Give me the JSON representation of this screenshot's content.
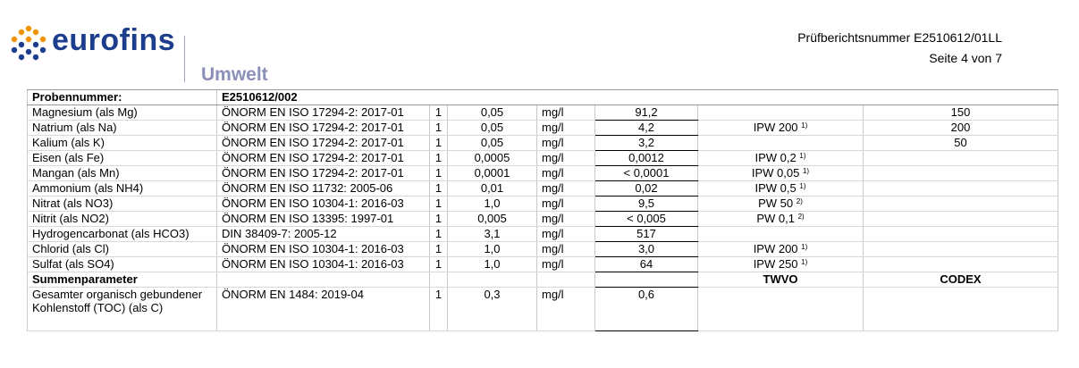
{
  "header": {
    "logo": "eurofins",
    "division": "Umwelt",
    "report_number": "Prüfberichtsnummer E2510612/01LL",
    "page": "Seite 4 von 7"
  },
  "table": {
    "sample_label": "Probennummer:",
    "sample_id": "E2510612/002",
    "rows": [
      {
        "parameter": "Magnesium (als Mg)",
        "method": "ÖNORM EN ISO 17294-2: 2017-01",
        "count": "1",
        "loq": "0,05",
        "unit": "mg/l",
        "value": "91,2",
        "codex": "150"
      },
      {
        "parameter": "Natrium (als Na)",
        "method": "ÖNORM EN ISO 17294-2: 2017-01",
        "count": "1",
        "loq": "0,05",
        "unit": "mg/l",
        "value": "4,2",
        "twvo": {
          "limit": "IPW 200",
          "note": "1)"
        },
        "codex": "200"
      },
      {
        "parameter": "Kalium (als K)",
        "method": "ÖNORM EN ISO 17294-2: 2017-01",
        "count": "1",
        "loq": "0,05",
        "unit": "mg/l",
        "value": "3,2",
        "codex": "50"
      },
      {
        "parameter": "Eisen (als Fe)",
        "method": "ÖNORM EN ISO 17294-2: 2017-01",
        "count": "1",
        "loq": "0,0005",
        "unit": "mg/l",
        "value": "0,0012",
        "twvo": {
          "limit": "IPW 0,2",
          "note": "1)"
        }
      },
      {
        "parameter": "Mangan (als Mn)",
        "method": "ÖNORM EN ISO 17294-2: 2017-01",
        "count": "1",
        "loq": "0,0001",
        "unit": "mg/l",
        "value": "< 0,0001",
        "twvo": {
          "limit": "IPW 0,05",
          "note": "1)"
        }
      },
      {
        "parameter": "Ammonium (als NH4)",
        "method": "ÖNORM EN ISO 11732: 2005-06",
        "count": "1",
        "loq": "0,01",
        "unit": "mg/l",
        "value": "0,02",
        "twvo": {
          "limit": "IPW 0,5",
          "note": "1)"
        }
      },
      {
        "parameter": "Nitrat (als NO3)",
        "method": "ÖNORM EN ISO 10304-1: 2016-03",
        "count": "1",
        "loq": "1,0",
        "unit": "mg/l",
        "value": "9,5",
        "twvo": {
          "limit": "PW 50",
          "note": "2)"
        }
      },
      {
        "parameter": "Nitrit (als NO2)",
        "method": "ÖNORM EN ISO 13395: 1997-01",
        "count": "1",
        "loq": "0,005",
        "unit": "mg/l",
        "value": "< 0,005",
        "twvo": {
          "limit": "PW 0,1",
          "note": "2)"
        }
      },
      {
        "parameter": "Hydrogencarbonat (als HCO3)",
        "method": "DIN 38409-7: 2005-12",
        "count": "1",
        "loq": "3,1",
        "unit": "mg/l",
        "value": "517"
      },
      {
        "parameter": "Chlorid (als Cl)",
        "method": "ÖNORM EN ISO 10304-1: 2016-03",
        "count": "1",
        "loq": "1,0",
        "unit": "mg/l",
        "value": "3,0",
        "twvo": {
          "limit": "IPW 200",
          "note": "1)"
        }
      },
      {
        "parameter": "Sulfat (als SO4)",
        "method": "ÖNORM EN ISO 10304-1: 2016-03",
        "count": "1",
        "loq": "1,0",
        "unit": "mg/l",
        "value": "64",
        "twvo": {
          "limit": "IPW 250",
          "note": "1)"
        }
      }
    ],
    "section": {
      "title": "Summenparameter",
      "twvo": "TWVO",
      "codex": "CODEX"
    },
    "section_rows": [
      {
        "parameter": "Gesamter organisch gebundener Kohlenstoff (TOC) (als C)",
        "method": "ÖNORM EN 1484: 2019-04",
        "count": "1",
        "loq": "0,3",
        "unit": "mg/l",
        "value": "0,6"
      }
    ]
  }
}
